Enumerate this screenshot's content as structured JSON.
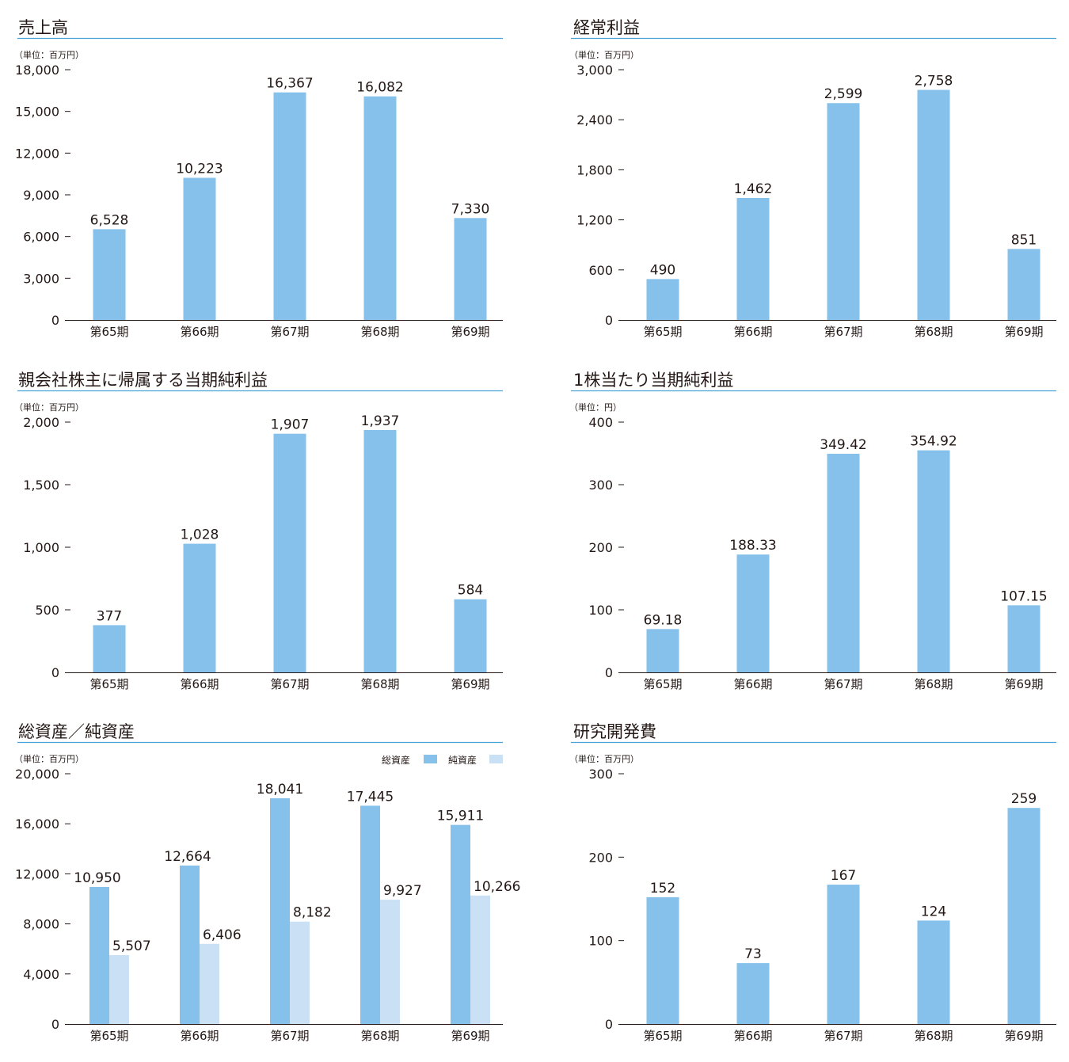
{
  "colors": {
    "primary": "#85c1ea",
    "secondary": "#c9e0f5",
    "rule": "#4aa3d8",
    "text": "#231815"
  },
  "chart_data": [
    {
      "type": "bar",
      "title": "売上高",
      "unit": "（単位：百万円）",
      "categories": [
        "第65期",
        "第66期",
        "第67期",
        "第68期",
        "第69期"
      ],
      "ylim": [
        0,
        18000
      ],
      "yticks": [
        0,
        3000,
        6000,
        9000,
        12000,
        15000,
        18000
      ],
      "ytick_labels": [
        "0",
        "3,000",
        "6,000",
        "9,000",
        "12,000",
        "15,000",
        "18,000"
      ],
      "series": [
        {
          "values": [
            6528,
            10223,
            16367,
            16082,
            7330
          ],
          "labels": [
            "6,528",
            "10,223",
            "16,367",
            "16,082",
            "7,330"
          ]
        }
      ]
    },
    {
      "type": "bar",
      "title": "経常利益",
      "unit": "（単位：百万円）",
      "categories": [
        "第65期",
        "第66期",
        "第67期",
        "第68期",
        "第69期"
      ],
      "ylim": [
        0,
        3000
      ],
      "yticks": [
        0,
        600,
        1200,
        1800,
        2400,
        3000
      ],
      "ytick_labels": [
        "0",
        "600",
        "1,200",
        "1,800",
        "2,400",
        "3,000"
      ],
      "series": [
        {
          "values": [
            490,
            1462,
            2599,
            2758,
            851
          ],
          "labels": [
            "490",
            "1,462",
            "2,599",
            "2,758",
            "851"
          ]
        }
      ]
    },
    {
      "type": "bar",
      "title": "親会社株主に帰属する当期純利益",
      "unit": "（単位：百万円）",
      "categories": [
        "第65期",
        "第66期",
        "第67期",
        "第68期",
        "第69期"
      ],
      "ylim": [
        0,
        2000
      ],
      "yticks": [
        0,
        500,
        1000,
        1500,
        2000
      ],
      "ytick_labels": [
        "0",
        "500",
        "1,000",
        "1,500",
        "2,000"
      ],
      "series": [
        {
          "values": [
            377,
            1028,
            1907,
            1937,
            584
          ],
          "labels": [
            "377",
            "1,028",
            "1,907",
            "1,937",
            "584"
          ]
        }
      ]
    },
    {
      "type": "bar",
      "title": "1株当たり当期純利益",
      "unit": "（単位：円）",
      "categories": [
        "第65期",
        "第66期",
        "第67期",
        "第68期",
        "第69期"
      ],
      "ylim": [
        0,
        400
      ],
      "yticks": [
        0,
        100,
        200,
        300,
        400
      ],
      "ytick_labels": [
        "0",
        "100",
        "200",
        "300",
        "400"
      ],
      "series": [
        {
          "values": [
            69.18,
            188.33,
            349.42,
            354.92,
            107.15
          ],
          "labels": [
            "69.18",
            "188.33",
            "349.42",
            "354.92",
            "107.15"
          ]
        }
      ]
    },
    {
      "type": "bar",
      "title": "総資産／純資産",
      "unit": "（単位：百万円）",
      "legend_position": "top-right",
      "categories": [
        "第65期",
        "第66期",
        "第67期",
        "第68期",
        "第69期"
      ],
      "ylim": [
        0,
        20000
      ],
      "yticks": [
        0,
        4000,
        8000,
        12000,
        16000,
        20000
      ],
      "ytick_labels": [
        "0",
        "4,000",
        "8,000",
        "12,000",
        "16,000",
        "20,000"
      ],
      "series": [
        {
          "name": "総資産",
          "values": [
            10950,
            12664,
            18041,
            17445,
            15911
          ],
          "labels": [
            "10,950",
            "12,664",
            "18,041",
            "17,445",
            "15,911"
          ]
        },
        {
          "name": "純資産",
          "values": [
            5507,
            6406,
            8182,
            9927,
            10266
          ],
          "labels": [
            "5,507",
            "6,406",
            "8,182",
            "9,927",
            "10,266"
          ]
        }
      ]
    },
    {
      "type": "bar",
      "title": "研究開発費",
      "unit": "（単位：百万円）",
      "categories": [
        "第65期",
        "第66期",
        "第67期",
        "第68期",
        "第69期"
      ],
      "ylim": [
        0,
        300
      ],
      "yticks": [
        0,
        100,
        200,
        300
      ],
      "ytick_labels": [
        "0",
        "100",
        "200",
        "300"
      ],
      "series": [
        {
          "values": [
            152,
            73,
            167,
            124,
            259
          ],
          "labels": [
            "152",
            "73",
            "167",
            "124",
            "259"
          ]
        }
      ]
    }
  ]
}
